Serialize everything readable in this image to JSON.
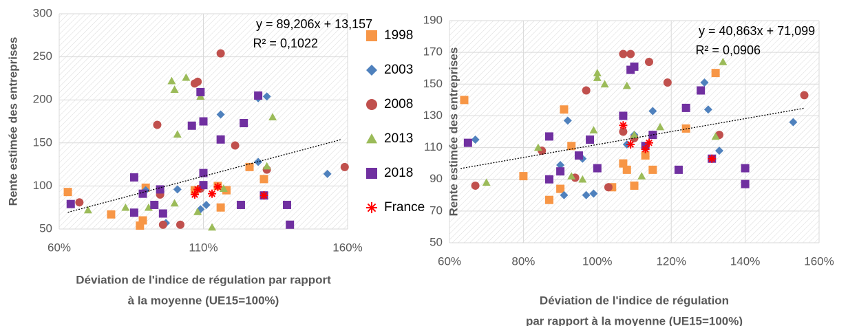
{
  "chart_data": [
    {
      "type": "scatter",
      "ylabel": "Rente estimée des entreprises",
      "xlabel": [
        "Déviation de l'indice de régulation par rapport",
        "à la moyenne (UE15=100%)"
      ],
      "annotations": [
        "y = 89,206x + 13,157",
        "R² = 0,1022"
      ],
      "xlim": [
        60,
        160
      ],
      "ylim": [
        50,
        300
      ],
      "xticks": [
        {
          "value": 60,
          "label": "60%"
        },
        {
          "value": 110,
          "label": "110%"
        },
        {
          "value": 160,
          "label": "160%"
        }
      ],
      "yticks": [
        50,
        100,
        150,
        200,
        250,
        300
      ],
      "grid": true,
      "legend": "right",
      "trendline": {
        "x": [
          63,
          158
        ],
        "y": [
          69.4,
          154.1
        ]
      },
      "series": [
        {
          "name": "1998",
          "color": "#f79646",
          "marker": "square",
          "x": [
            63,
            78,
            88,
            89,
            90,
            107,
            115,
            116,
            126,
            131,
            118
          ],
          "values": [
            93,
            67,
            54,
            60,
            98,
            95,
            100,
            75,
            122,
            108,
            95
          ]
        },
        {
          "name": "2003",
          "color": "#4f81bd",
          "marker": "diamond",
          "x": [
            90,
            97,
            109,
            116,
            129,
            132,
            129,
            153,
            111,
            101
          ],
          "values": [
            95,
            57,
            73,
            183,
            128,
            204,
            202,
            114,
            78,
            96
          ]
        },
        {
          "name": "2008",
          "color": "#c0504d",
          "marker": "circle",
          "x": [
            67,
            94,
            96,
            102,
            107,
            108,
            109,
            116,
            121,
            132,
            159,
            95
          ],
          "values": [
            81,
            171,
            55,
            55,
            219,
            221,
            97,
            254,
            147,
            119,
            122,
            90
          ]
        },
        {
          "name": "2013",
          "color": "#9bbb59",
          "marker": "triangle",
          "x": [
            70,
            83,
            91,
            99,
            100,
            101,
            104,
            108,
            109,
            113,
            117,
            132,
            134,
            100
          ],
          "values": [
            72,
            75,
            75,
            222,
            212,
            160,
            226,
            70,
            204,
            52,
            97,
            123,
            180,
            80
          ]
        },
        {
          "name": "2018",
          "color": "#7030a0",
          "marker": "square",
          "x": [
            64,
            86,
            86,
            89,
            93,
            95,
            96,
            106,
            109,
            110,
            110,
            116,
            123,
            124,
            129,
            131,
            139,
            140,
            110
          ],
          "values": [
            79,
            110,
            69,
            91,
            78,
            96,
            68,
            170,
            209,
            115,
            175,
            154,
            78,
            173,
            205,
            89,
            78,
            55,
            101
          ]
        },
        {
          "name": "France",
          "color": "#ff0000",
          "marker": "star",
          "x": [
            107,
            108,
            113,
            115,
            131
          ],
          "values": [
            90,
            96,
            91,
            99,
            89
          ]
        }
      ]
    },
    {
      "type": "scatter",
      "ylabel": "Rente estimée des entreprises",
      "xlabel": [
        "Déviation de l'indice de régulation",
        "par rapport à la moyenne (UE15=100%)"
      ],
      "annotations": [
        "y = 40,863x + 71,099",
        "R² = 0,0906"
      ],
      "xlim": [
        60,
        160
      ],
      "ylim": [
        50,
        190
      ],
      "xticks": [
        {
          "value": 60,
          "label": "60%"
        },
        {
          "value": 80,
          "label": "80%"
        },
        {
          "value": 100,
          "label": "100%"
        },
        {
          "value": 120,
          "label": "120%"
        },
        {
          "value": 140,
          "label": "140%"
        },
        {
          "value": 160,
          "label": "160%"
        }
      ],
      "yticks": [
        50,
        70,
        90,
        110,
        130,
        150,
        170,
        190
      ],
      "grid": true,
      "legend": "none",
      "trendline": {
        "x": [
          63,
          156
        ],
        "y": [
          96.8,
          134.8
        ]
      },
      "series": [
        {
          "name": "1998",
          "color": "#f79646",
          "marker": "square",
          "x": [
            64,
            80,
            87,
            91,
            93,
            104,
            107,
            108,
            110,
            113,
            115,
            124,
            132,
            90
          ],
          "values": [
            140,
            92,
            77,
            134,
            111,
            85,
            100,
            96,
            86,
            105,
            96,
            122,
            157,
            84
          ]
        },
        {
          "name": "2003",
          "color": "#4f81bd",
          "marker": "diamond",
          "x": [
            67,
            90,
            91,
            92,
            97,
            99,
            108,
            110,
            115,
            129,
            130,
            133,
            153,
            96
          ],
          "values": [
            115,
            99,
            80,
            127,
            80,
            81,
            112,
            118,
            133,
            151,
            134,
            108,
            126,
            103
          ]
        },
        {
          "name": "2008",
          "color": "#c0504d",
          "marker": "circle",
          "x": [
            67,
            85,
            94,
            97,
            107,
            107,
            109,
            110,
            114,
            119,
            133,
            156,
            103
          ],
          "values": [
            86,
            108,
            91,
            146,
            120,
            169,
            169,
            116,
            164,
            151,
            118,
            143,
            85
          ]
        },
        {
          "name": "2013",
          "color": "#9bbb59",
          "marker": "triangle",
          "x": [
            70,
            84,
            93,
            96,
            100,
            100,
            102,
            108,
            110,
            112,
            117,
            132,
            134,
            99
          ],
          "values": [
            88,
            110,
            92,
            90,
            154,
            157,
            150,
            149,
            118,
            92,
            123,
            117,
            164,
            121
          ]
        },
        {
          "name": "2018",
          "color": "#7030a0",
          "marker": "square",
          "x": [
            65,
            87,
            87,
            90,
            95,
            98,
            100,
            107,
            109,
            110,
            113,
            115,
            124,
            128,
            131,
            140,
            140,
            122
          ],
          "values": [
            113,
            117,
            90,
            95,
            105,
            115,
            97,
            130,
            159,
            161,
            111,
            118,
            135,
            146,
            103,
            97,
            87,
            96
          ]
        },
        {
          "name": "France",
          "color": "#ff0000",
          "marker": "star",
          "x": [
            107,
            109,
            113,
            114,
            131
          ],
          "values": [
            124,
            112,
            109,
            113,
            103
          ]
        }
      ]
    }
  ]
}
